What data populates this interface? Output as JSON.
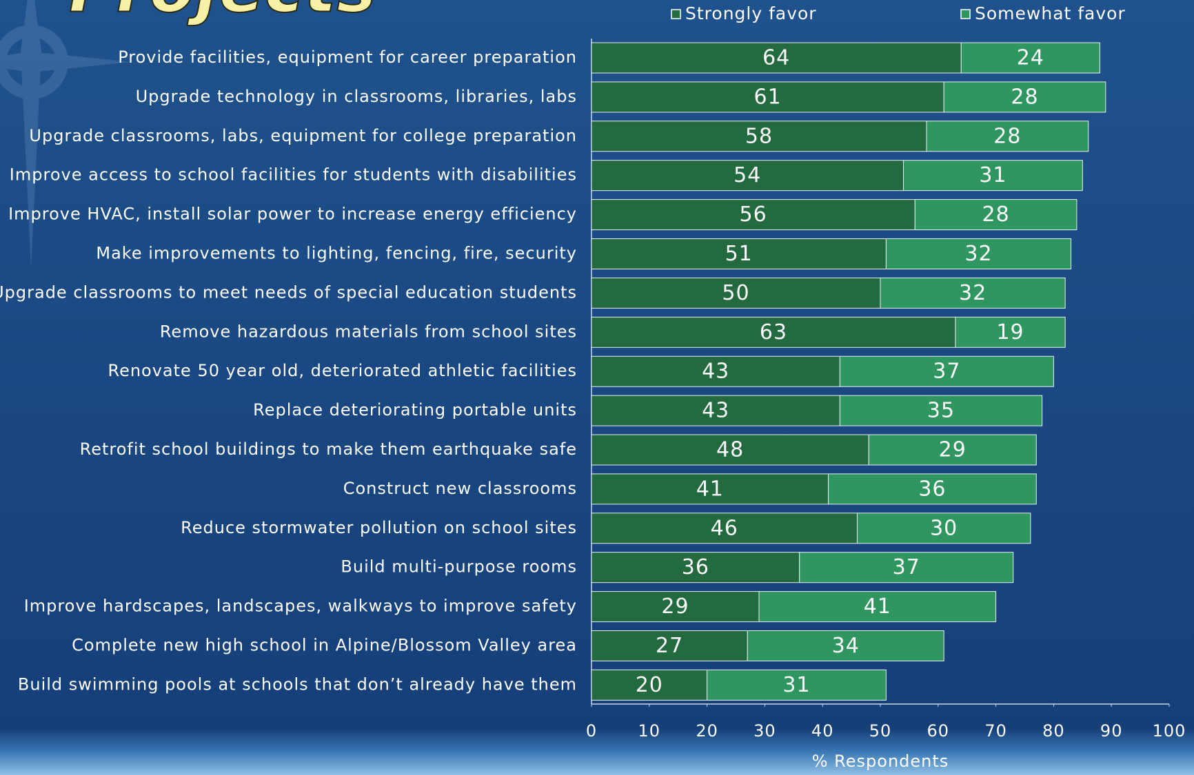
{
  "chart_data": {
    "type": "stacked_bar_horizontal",
    "title": "Projects",
    "categories": [
      "Provide facilities, equipment for career preparation",
      "Upgrade technology in classrooms, libraries, labs",
      "Upgrade classrooms, labs, equipment for college preparation",
      "Improve access to school facilities for students with disabilities",
      "Improve HVAC, install solar power to increase energy efficiency",
      "Make improvements to lighting, fencing, fire, security",
      "Upgrade classrooms to meet needs of special education students",
      "Remove hazardous materials from school sites",
      "Renovate 50 year old, deteriorated athletic facilities",
      "Replace deteriorating portable units",
      "Retrofit school buildings to make them earthquake safe",
      "Construct new classrooms",
      "Reduce stormwater pollution on school sites",
      "Build multi-purpose rooms",
      "Improve hardscapes, landscapes, walkways to improve safety",
      "Complete new high school in Alpine/Blossom Valley area",
      "Build swimming pools at schools that don’t already have them"
    ],
    "series": [
      {
        "name": "Strongly favor",
        "color": "#236a3f",
        "values": [
          64,
          61,
          58,
          54,
          56,
          51,
          50,
          63,
          43,
          43,
          48,
          41,
          46,
          36,
          29,
          27,
          20
        ]
      },
      {
        "name": "Somewhat favor",
        "color": "#2f9660",
        "values": [
          24,
          28,
          28,
          31,
          28,
          32,
          32,
          19,
          37,
          35,
          29,
          36,
          30,
          37,
          41,
          34,
          31
        ]
      }
    ],
    "xlabel": "% Respondents",
    "xlim": [
      0,
      100
    ],
    "xticks": [
      0,
      10,
      20,
      30,
      40,
      50,
      60,
      70,
      80,
      90,
      100
    ]
  }
}
